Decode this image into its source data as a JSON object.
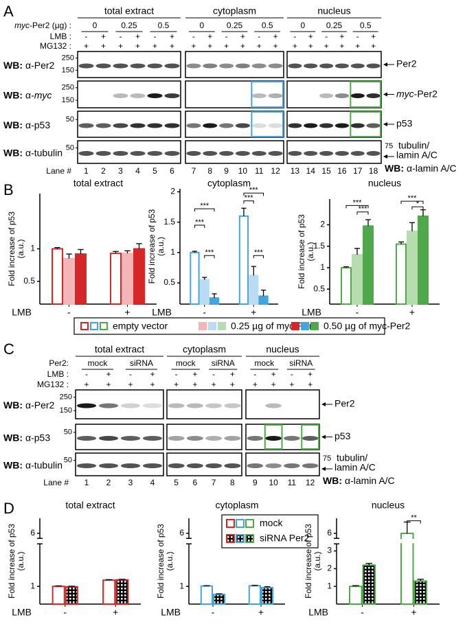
{
  "figure": {
    "panel_letters": [
      "A",
      "B",
      "C",
      "D"
    ],
    "a": {
      "groups": [
        "total extract",
        "cytoplasm",
        "nucleus"
      ],
      "pair_label_italic": "myc",
      "pair_label": "-Per2 (µg) :",
      "pairs": [
        "0",
        "0.25",
        "0.5"
      ],
      "lmb_label": "LMB :",
      "mg132_label": "MG132 :",
      "signs": [
        "-",
        "+"
      ],
      "wb": "WB:",
      "blots": [
        {
          "antibody": "α-Per2",
          "markers": [
            "250",
            "150"
          ],
          "target": "Per2"
        },
        {
          "antibody": "α-",
          "antibody_italic": "myc",
          "markers": [
            "250",
            "150"
          ],
          "target_italic": "myc",
          "target": "-Per2"
        },
        {
          "antibody": "α-p53",
          "markers": [
            "50"
          ],
          "target": "p53"
        },
        {
          "antibody": "α-tubulin",
          "markers": [
            "50"
          ],
          "right_marker": "75",
          "target_lines": [
            "tubulin/",
            "lamin A/C"
          ],
          "right_wb_antibody": "α-lamin A/C"
        }
      ],
      "lane_label": "Lane #",
      "lanes": [
        "1",
        "2",
        "3",
        "4",
        "5",
        "6",
        "7",
        "8",
        "9",
        "10",
        "11",
        "12",
        "13",
        "14",
        "15",
        "16",
        "17",
        "18"
      ]
    },
    "c": {
      "groups": [
        "total extract",
        "cytoplasm",
        "nucleus"
      ],
      "pair_label": "Per2:",
      "pairs": [
        "mock",
        "siRNA"
      ],
      "lmb_label": "LMB :",
      "mg132_label": "MG132 :",
      "signs": [
        "-",
        "+"
      ],
      "wb": "WB:",
      "blots": [
        {
          "antibody": "α-Per2",
          "markers": [
            "250",
            "150"
          ],
          "target": "Per2"
        },
        {
          "antibody": "α-p53",
          "markers": [
            "50"
          ],
          "target": "p53"
        },
        {
          "antibody": "α-tubulin",
          "markers": [
            "50"
          ],
          "right_marker": "75",
          "target_lines": [
            "tubulin/",
            "lamin A/C"
          ],
          "right_wb_antibody": "α-lamin A/C"
        }
      ],
      "lane_label": "Lane #",
      "lanes": [
        "1",
        "2",
        "3",
        "4",
        "5",
        "6",
        "7",
        "8",
        "9",
        "10",
        "11",
        "12"
      ]
    }
  },
  "chart_data": [
    {
      "type": "bar",
      "title": "total extract",
      "ylabel": [
        "Fold increase of p53",
        "(a.u.)"
      ],
      "xlabel": "LMB",
      "categories": [
        "-",
        "+"
      ],
      "ylim": [
        0.15,
        1.85
      ],
      "yticks": [
        0.5,
        1
      ],
      "series": [
        {
          "name": "empty vector",
          "style": "open",
          "color": "#d62728",
          "values": [
            1.0,
            0.93
          ],
          "errors": [
            0.02,
            0.03
          ]
        },
        {
          "name": "0.25 µg of myc-Per2",
          "style": "filled",
          "color": "#f4b5b7",
          "values": [
            0.85,
            0.93
          ],
          "errors": [
            0.07,
            0.04
          ]
        },
        {
          "name": "0.50 µg of myc-Per2",
          "style": "filled",
          "color": "#d62728",
          "values": [
            0.92,
            1.0
          ],
          "errors": [
            0.07,
            0.08
          ]
        }
      ]
    },
    {
      "type": "bar",
      "title": "cytoplasm",
      "ylabel": [
        "Fold increase of p53",
        "(a.u.)"
      ],
      "xlabel": "LMB",
      "categories": [
        "-",
        "+"
      ],
      "ylim": [
        0.15,
        2.05
      ],
      "yticks": [
        0.5,
        1,
        1.5,
        2
      ],
      "series": [
        {
          "name": "empty vector",
          "style": "open",
          "color": "#42a5e0",
          "values": [
            1.0,
            1.6
          ],
          "errors": [
            0.02,
            0.13
          ]
        },
        {
          "name": "0.25 µg of myc-Per2",
          "style": "filled",
          "color": "#b9dcf3",
          "values": [
            0.55,
            0.62
          ],
          "errors": [
            0.04,
            0.15
          ]
        },
        {
          "name": "0.50 µg of myc-Per2",
          "style": "filled",
          "color": "#42a5e0",
          "values": [
            0.25,
            0.28
          ],
          "errors": [
            0.07,
            0.1
          ]
        }
      ],
      "annotations": [
        "***",
        "***",
        "***",
        "***",
        "***",
        "***"
      ]
    },
    {
      "type": "bar",
      "title": "nucleus",
      "ylabel": [
        "Fold increase of p53",
        "(a.u.)"
      ],
      "xlabel": "LMB",
      "categories": [
        "-",
        "+"
      ],
      "ylim": [
        0.15,
        2.6
      ],
      "yticks": [
        0.5,
        1,
        1.5,
        2
      ],
      "series": [
        {
          "name": "empty vector",
          "style": "open",
          "color": "#4fa84a",
          "values": [
            1.0,
            1.55
          ],
          "errors": [
            0.02,
            0.05
          ]
        },
        {
          "name": "0.25 µg of myc-Per2",
          "style": "filled",
          "color": "#b6dcb0",
          "values": [
            1.3,
            1.85
          ],
          "errors": [
            0.15,
            0.2
          ]
        },
        {
          "name": "0.50 µg of myc-Per2",
          "style": "filled",
          "color": "#4fa84a",
          "values": [
            1.97,
            2.2
          ],
          "errors": [
            0.15,
            0.15
          ]
        }
      ],
      "annotations": [
        "***",
        "***",
        "***",
        "*"
      ]
    },
    {
      "type": "bar",
      "title": "total extract",
      "ylabel": [
        "Fold increase of p53",
        "(a.u.)"
      ],
      "xlabel": "LMB",
      "categories": [
        "-",
        "+"
      ],
      "ylim": [
        0,
        7.2
      ],
      "ybreak": [
        3.4,
        5.6
      ],
      "yticks": [
        1,
        6
      ],
      "series": [
        {
          "name": "mock",
          "style": "open",
          "color": "#d62728",
          "values": [
            1.0,
            1.35
          ],
          "errors": [
            0.03,
            0.03
          ]
        },
        {
          "name": "siRNA Per2",
          "style": "hatched",
          "color": "#d62728",
          "values": [
            0.98,
            1.37
          ],
          "errors": [
            0.03,
            0.03
          ]
        }
      ]
    },
    {
      "type": "bar",
      "title": "cytoplasm",
      "ylabel": [
        "Fold increase of p53",
        "(a.u.)"
      ],
      "xlabel": "LMB",
      "categories": [
        "-",
        "+"
      ],
      "ylim": [
        0,
        7.2
      ],
      "ybreak": [
        3.4,
        5.6
      ],
      "yticks": [
        1,
        6
      ],
      "series": [
        {
          "name": "mock",
          "style": "open",
          "color": "#42a5e0",
          "values": [
            1.02,
            1.03
          ],
          "errors": [
            0.02,
            0.03
          ]
        },
        {
          "name": "siRNA Per2",
          "style": "hatched",
          "color": "#42a5e0",
          "values": [
            0.55,
            0.93
          ],
          "errors": [
            0.03,
            0.05
          ]
        }
      ]
    },
    {
      "type": "bar",
      "title": "nucleus",
      "ylabel": [
        "Fold increase of p53",
        "(a.u.)"
      ],
      "xlabel": "LMB",
      "categories": [
        "-",
        "+"
      ],
      "ylim": [
        0,
        7.2
      ],
      "ybreak": [
        3.4,
        5.6
      ],
      "yticks": [
        1,
        2,
        3,
        6
      ],
      "series": [
        {
          "name": "mock",
          "style": "open",
          "color": "#4fa84a",
          "values": [
            1.0,
            6.0
          ],
          "errors": [
            0.04,
            0.9
          ]
        },
        {
          "name": "siRNA Per2",
          "style": "hatched",
          "color": "#4fa84a",
          "values": [
            2.2,
            1.3
          ],
          "errors": [
            0.1,
            0.1
          ]
        }
      ],
      "annotations": [
        "**"
      ]
    }
  ]
}
